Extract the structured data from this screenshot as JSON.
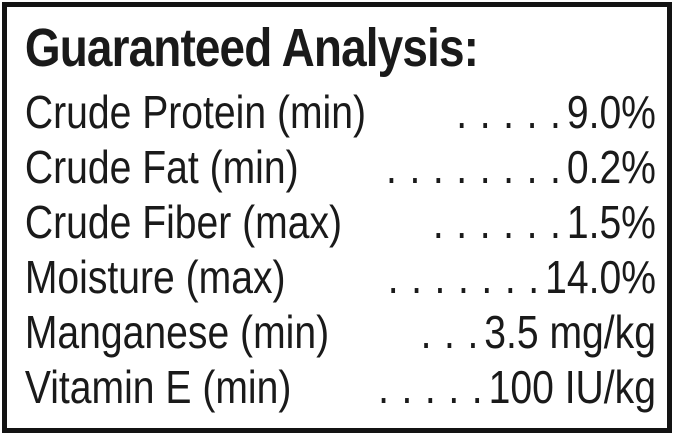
{
  "label": {
    "title": "Guaranteed Analysis:",
    "rows": [
      {
        "nutrient": "Crude Protein (min)",
        "dots": ". . . . .",
        "value": "9.0%"
      },
      {
        "nutrient": "Crude Fat (min)",
        "dots": ". . . . . . . .",
        "value": "0.2%"
      },
      {
        "nutrient": "Crude Fiber (max)",
        "dots": ". . . . . .",
        "value": "1.5%"
      },
      {
        "nutrient": "Moisture (max)",
        "dots": ". . . . . . .",
        "value": "14.0%"
      },
      {
        "nutrient": "Manganese (min)",
        "dots": ". . .",
        "value": "3.5 mg/kg"
      },
      {
        "nutrient": "Vitamin E (min)",
        "dots": ". . . . .",
        "value": "100 IU/kg"
      }
    ],
    "colors": {
      "text": "#1a1a1a",
      "border": "#131313",
      "background": "#ffffff"
    }
  }
}
